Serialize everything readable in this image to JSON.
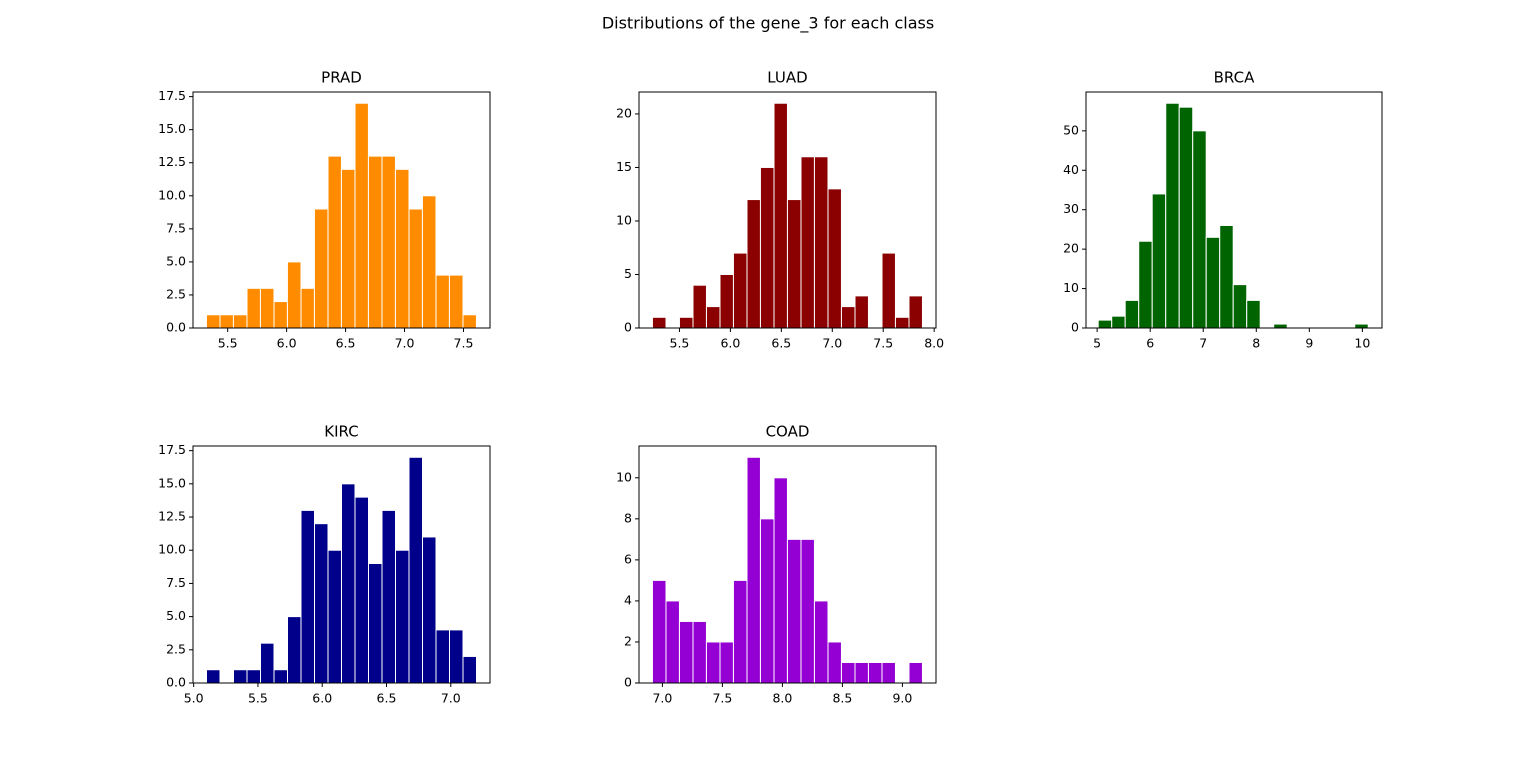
{
  "title": "Distributions of the gene_3 for each class",
  "chart_data": [
    {
      "type": "histogram",
      "title": "PRAD",
      "color": "#ff8c00",
      "bins": [
        5.32,
        5.435,
        5.549,
        5.664,
        5.778,
        5.893,
        6.007,
        6.122,
        6.236,
        6.351,
        6.465,
        6.58,
        6.694,
        6.809,
        6.923,
        7.038,
        7.152,
        7.267,
        7.381,
        7.496,
        7.61
      ],
      "values": [
        1,
        1,
        1,
        3,
        3,
        2,
        5,
        3,
        9,
        13,
        12,
        17,
        13,
        13,
        12,
        9,
        10,
        4,
        4,
        1
      ],
      "xlim": [
        5.206,
        7.725
      ],
      "xticks": [
        5.5,
        {
          "value": 6,
          "label": "6.0"
        },
        6.5,
        {
          "value": 7,
          "label": "7.0"
        },
        7.5
      ],
      "ylim": [
        0,
        17.85
      ],
      "yticks": [
        {
          "value": 0,
          "label": "0.0"
        },
        2.5,
        {
          "value": 5,
          "label": "5.0"
        },
        7.5,
        {
          "value": 10,
          "label": "10.0"
        },
        12.5,
        {
          "value": 15,
          "label": "15.0"
        },
        17.5
      ]
    },
    {
      "type": "histogram",
      "title": "LUAD",
      "color": "#8b0000",
      "bins": [
        5.235,
        5.368,
        5.5,
        5.633,
        5.765,
        5.898,
        6.03,
        6.163,
        6.295,
        6.428,
        6.56,
        6.693,
        6.825,
        6.958,
        7.09,
        7.223,
        7.355,
        7.488,
        7.62,
        7.753,
        7.885
      ],
      "values": [
        1,
        0,
        1,
        4,
        2,
        5,
        7,
        12,
        15,
        21,
        12,
        16,
        16,
        13,
        2,
        3,
        0,
        7,
        1,
        3
      ],
      "xlim": [
        5.103,
        8.018
      ],
      "xticks": [
        5.5,
        {
          "value": 6,
          "label": "6.0"
        },
        6.5,
        {
          "value": 7,
          "label": "7.0"
        },
        7.5,
        {
          "value": 8,
          "label": "8.0"
        }
      ],
      "ylim": [
        0,
        22.05
      ],
      "yticks": [
        0,
        5,
        10,
        15,
        20
      ]
    },
    {
      "type": "histogram",
      "title": "BRCA",
      "color": "#006400",
      "bins": [
        5.02,
        5.275,
        5.529,
        5.784,
        6.038,
        6.293,
        6.547,
        6.802,
        7.056,
        7.311,
        7.565,
        7.82,
        8.074,
        8.329,
        8.583,
        8.838,
        9.092,
        9.347,
        9.601,
        9.856,
        10.11
      ],
      "values": [
        2,
        3,
        7,
        22,
        34,
        57,
        56,
        50,
        23,
        26,
        11,
        7,
        0,
        1,
        0,
        0,
        0,
        0,
        0,
        1
      ],
      "xlim": [
        4.79,
        10.37
      ],
      "xticks": [
        5,
        6,
        7,
        8,
        9,
        10
      ],
      "ylim": [
        0,
        59.85
      ],
      "yticks": [
        0,
        10,
        20,
        30,
        40,
        50
      ]
    },
    {
      "type": "histogram",
      "title": "KIRC",
      "color": "#00008b",
      "bins": [
        5.1,
        5.205,
        5.31,
        5.415,
        5.52,
        5.625,
        5.73,
        5.835,
        5.94,
        6.045,
        6.15,
        6.255,
        6.36,
        6.465,
        6.57,
        6.675,
        6.78,
        6.885,
        6.99,
        7.095,
        7.2
      ],
      "values": [
        1,
        0,
        1,
        1,
        3,
        1,
        5,
        13,
        12,
        10,
        15,
        14,
        9,
        13,
        10,
        17,
        11,
        4,
        4,
        2
      ],
      "xlim": [
        4.995,
        7.305
      ],
      "xticks": [
        {
          "value": 5,
          "label": "5.0"
        },
        5.5,
        {
          "value": 6,
          "label": "6.0"
        },
        6.5,
        {
          "value": 7,
          "label": "7.0"
        }
      ],
      "ylim": [
        0,
        17.85
      ],
      "yticks": [
        {
          "value": 0,
          "label": "0.0"
        },
        2.5,
        {
          "value": 5,
          "label": "5.0"
        },
        7.5,
        {
          "value": 10,
          "label": "10.0"
        },
        12.5,
        {
          "value": 15,
          "label": "15.0"
        },
        17.5
      ]
    },
    {
      "type": "histogram",
      "title": "COAD",
      "color": "#9400d3",
      "bins": [
        6.917,
        7.03,
        7.142,
        7.255,
        7.367,
        7.48,
        7.592,
        7.705,
        7.817,
        7.93,
        8.042,
        8.155,
        8.267,
        8.38,
        8.492,
        8.605,
        8.717,
        8.83,
        8.942,
        9.055,
        9.167
      ],
      "values": [
        5,
        4,
        3,
        3,
        2,
        2,
        5,
        11,
        8,
        10,
        7,
        7,
        4,
        2,
        1,
        1,
        1,
        1,
        0,
        1
      ],
      "xlim": [
        6.805,
        9.28
      ],
      "xticks": [
        {
          "value": 7,
          "label": "7.0"
        },
        7.5,
        {
          "value": 8,
          "label": "8.0"
        },
        8.5,
        {
          "value": 9,
          "label": "9.0"
        }
      ],
      "ylim": [
        0,
        11.55
      ],
      "yticks": [
        0,
        2,
        4,
        6,
        8,
        10
      ]
    }
  ]
}
